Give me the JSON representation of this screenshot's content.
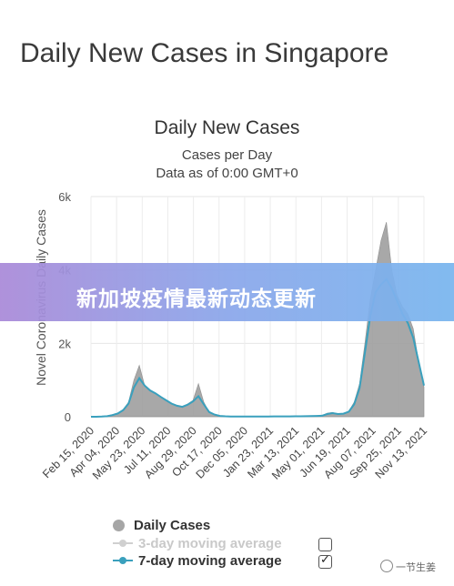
{
  "page": {
    "title": "Daily New Cases in Singapore",
    "banner_text": "新加坡疫情最新动态更新",
    "watermark": "一节生姜"
  },
  "chart_data": {
    "type": "area",
    "title": "Daily New Cases",
    "subtitle": "Cases per Day",
    "subtitle2": "Data as of 0:00 GMT+0",
    "ylabel": "Novel Coronavirus Daily Cases",
    "xlabel": "",
    "ylim": [
      0,
      6000
    ],
    "y_ticks": [
      0,
      2000,
      4000,
      6000
    ],
    "y_tick_labels": [
      "0",
      "2k",
      "4k",
      "6k"
    ],
    "x_tick_labels": [
      "Feb 15, 2020",
      "Apr 04, 2020",
      "May 23, 2020",
      "Jul 11, 2020",
      "Aug 29, 2020",
      "Oct 17, 2020",
      "Dec 05, 2020",
      "Jan 23, 2021",
      "Mar 13, 2021",
      "May 01, 2021",
      "Jun 19, 2021",
      "Aug 07, 2021",
      "Sep 25, 2021",
      "Nov 13, 2021"
    ],
    "grid": true,
    "colors": {
      "daily": "#9a9a9a",
      "ma7": "#3aa0bd",
      "ma3": "#d0d0d0"
    },
    "series": [
      {
        "name": "Daily Cases",
        "values": [
          0,
          0,
          10,
          20,
          60,
          100,
          200,
          400,
          1000,
          1400,
          850,
          700,
          650,
          550,
          450,
          350,
          300,
          250,
          350,
          450,
          900,
          400,
          120,
          60,
          20,
          10,
          8,
          6,
          6,
          5,
          4,
          5,
          6,
          8,
          10,
          10,
          12,
          10,
          14,
          12,
          15,
          20,
          22,
          30,
          100,
          120,
          60,
          80,
          150,
          400,
          900,
          2000,
          3200,
          4000,
          4800,
          5300,
          4000,
          3300,
          3000,
          2800,
          2400,
          1500,
          800
        ]
      },
      {
        "name": "3-day moving average",
        "values": []
      },
      {
        "name": "7-day moving average",
        "values": [
          0,
          0,
          6,
          15,
          45,
          90,
          180,
          360,
          800,
          1050,
          850,
          720,
          640,
          540,
          450,
          360,
          300,
          270,
          330,
          420,
          560,
          340,
          130,
          60,
          22,
          12,
          8,
          6,
          6,
          5,
          5,
          5,
          6,
          8,
          9,
          10,
          11,
          11,
          12,
          12,
          14,
          18,
          22,
          28,
          75,
          100,
          75,
          85,
          140,
          340,
          780,
          1750,
          2750,
          3400,
          3600,
          3750,
          3500,
          3150,
          2800,
          2550,
          2150,
          1500,
          850
        ]
      }
    ],
    "legend": {
      "items": [
        {
          "label": "Daily Cases",
          "checked": true
        },
        {
          "label": "3-day moving average",
          "checked": false
        },
        {
          "label": "7-day moving average",
          "checked": true
        }
      ],
      "position": "bottom"
    }
  }
}
